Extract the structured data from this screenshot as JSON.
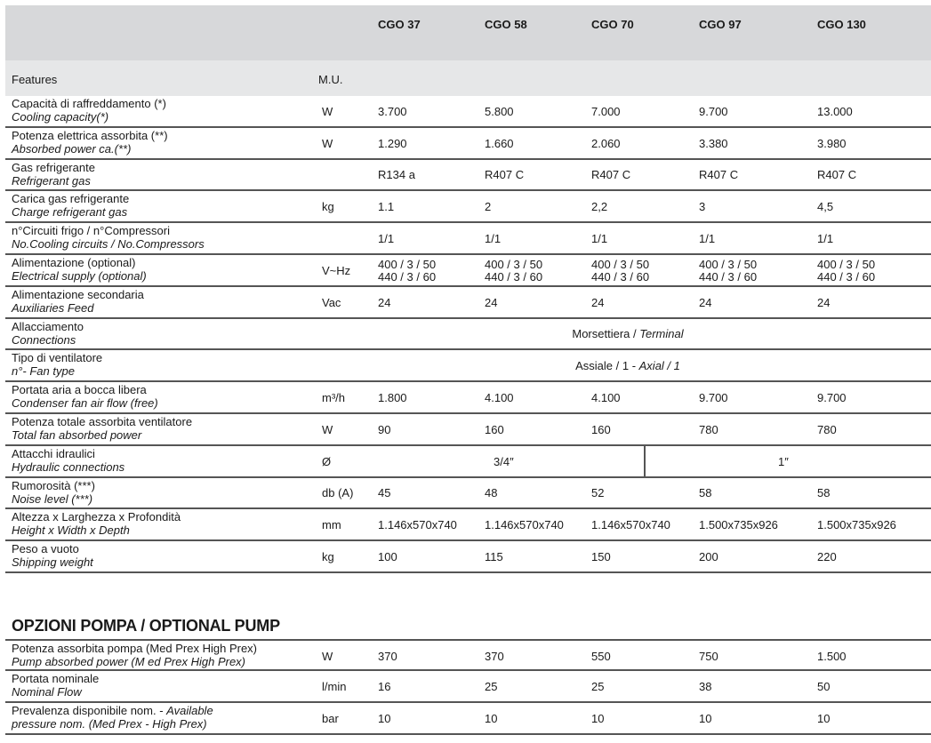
{
  "header": {
    "models": [
      "CGO 37",
      "CGO 58",
      "CGO 70",
      "CGO 97",
      "CGO 130"
    ],
    "features_label": "Features",
    "mu_label": "M.U."
  },
  "rows": [
    {
      "it": "Capacità di raffreddamento (*)",
      "en": "Cooling capacity(*)",
      "mu": "W",
      "values": [
        "3.700",
        "5.800",
        "7.000",
        "9.700",
        "13.000"
      ]
    },
    {
      "it": "Potenza elettrica assorbita (**)",
      "en": "Absorbed power ca.(**)",
      "mu": "W",
      "values": [
        "1.290",
        "1.660",
        "2.060",
        "3.380",
        "3.980"
      ]
    },
    {
      "it": "Gas refrigerante",
      "en": "Refrigerant gas",
      "mu": "",
      "values": [
        "R134 a",
        "R407 C",
        "R407 C",
        "R407 C",
        "R407 C"
      ]
    },
    {
      "it": "Carica gas refrigerante",
      "en": "Charge refrigerant gas",
      "mu": "kg",
      "values": [
        "1.1",
        "2",
        "2,2",
        "3",
        "4,5"
      ]
    },
    {
      "it": "n°Circuiti frigo / n°Compressori",
      "en": "No.Cooling circuits / No.Compressors",
      "mu": "",
      "values": [
        "1/1",
        "1/1",
        "1/1",
        "1/1",
        "1/1"
      ]
    },
    {
      "it": "Alimentazione (optional)",
      "en": "Electrical supply (optional)",
      "mu": "V~Hz",
      "values": [
        "400 / 3 / 50\n440 / 3 / 60",
        "400 / 3 / 50\n440 / 3 / 60",
        "400 / 3 / 50\n440 / 3 / 60",
        "400 / 3 / 50\n440 / 3 / 60",
        "400 / 3 / 50\n440 / 3 / 60"
      ]
    },
    {
      "it": "Alimentazione secondaria",
      "en": "Auxiliaries Feed",
      "mu": "Vac",
      "values": [
        "24",
        "24",
        "24",
        "24",
        "24"
      ]
    },
    {
      "it": "Allacciamento",
      "en": "Connections",
      "mu": "",
      "span": {
        "a": "Morsettiera / ",
        "b": "Terminal"
      }
    },
    {
      "it": "Tipo di ventilatore",
      "en": "n°- Fan type",
      "mu": "",
      "span": {
        "a": "Assiale / 1 - ",
        "b": "Axial / 1"
      }
    },
    {
      "it": "Portata aria a bocca libera",
      "en": "Condenser fan air flow (free)",
      "mu": "m³/h",
      "values": [
        "1.800",
        "4.100",
        "4.100",
        "9.700",
        "9.700"
      ]
    },
    {
      "it": "Potenza totale assorbita ventilatore",
      "en": "Total fan absorbed power",
      "mu": "W",
      "values": [
        "90",
        "160",
        "160",
        "780",
        "780"
      ]
    },
    {
      "it": "Attacchi idraulici",
      "en": "Hydraulic connections",
      "mu": "Ø",
      "hydro": [
        "3/4″",
        "1″"
      ]
    },
    {
      "it": "Rumorosità (***)",
      "en": "Noise level (***)",
      "mu": "db (A)",
      "values": [
        "45",
        "48",
        "52",
        "58",
        "58"
      ]
    },
    {
      "it": "Altezza x Larghezza x Profondità",
      "en": "Height x Width x Depth",
      "mu": "mm",
      "values": [
        "1.146x570x740",
        "1.146x570x740",
        "1.146x570x740",
        "1.500x735x926",
        "1.500x735x926"
      ]
    },
    {
      "it": "Peso a vuoto",
      "en": "Shipping weight",
      "mu": "kg",
      "values": [
        "100",
        "115",
        "150",
        "200",
        "220"
      ]
    }
  ],
  "pump": {
    "title": "OPZIONI POMPA / OPTIONAL PUMP",
    "rows": [
      {
        "it": "Potenza assorbita pompa (Med Prex High Prex)",
        "en": "Pump absorbed power (M ed Prex High Prex)",
        "mu": "W",
        "values": [
          "370",
          "370",
          "550",
          "750",
          "1.500"
        ]
      },
      {
        "it": "Portata nominale",
        "en": "Nominal Flow",
        "mu": "l/min",
        "values": [
          "16",
          "25",
          "25",
          "38",
          "50"
        ]
      },
      {
        "it": "Prevalenza disponibile nom. - ",
        "it_italic": "Available",
        "en": "pressure nom. (Med Prex - High Prex)",
        "mu": "bar",
        "values": [
          "10",
          "10",
          "10",
          "10",
          "10"
        ]
      }
    ]
  }
}
